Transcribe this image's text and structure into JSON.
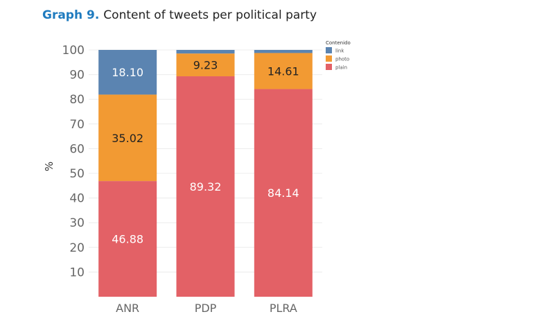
{
  "title": {
    "prefix": "Graph 9.",
    "text": "Content of tweets per political party"
  },
  "chart_data": {
    "type": "bar",
    "stacked": true,
    "categories": [
      "ANR",
      "PDP",
      "PLRA"
    ],
    "series": [
      {
        "name": "plain",
        "values": [
          46.88,
          89.32,
          84.14
        ],
        "color": "#e36166",
        "labels": [
          "46.88",
          "89.32",
          "84.14"
        ]
      },
      {
        "name": "photo",
        "values": [
          35.02,
          9.23,
          14.61
        ],
        "color": "#f29a33",
        "labels": [
          "35.02",
          "9.23",
          "14.61"
        ]
      },
      {
        "name": "link",
        "values": [
          18.1,
          1.45,
          1.25
        ],
        "color": "#5b84b1",
        "labels": [
          "18.10",
          "",
          ""
        ]
      }
    ],
    "ylabel": "%",
    "ylim": [
      0,
      100
    ],
    "yticks": [
      10,
      20,
      30,
      40,
      50,
      60,
      70,
      80,
      90,
      100
    ],
    "legend": {
      "title": "Contenido",
      "position": "top-right",
      "order": [
        "link",
        "photo",
        "plain"
      ]
    },
    "grid": true
  }
}
